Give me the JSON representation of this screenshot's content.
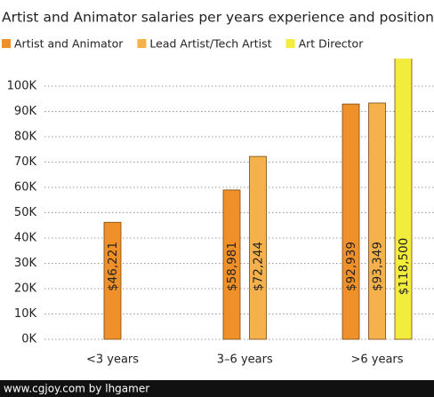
{
  "chart_data": {
    "type": "bar",
    "title": "Artist and Animator salaries per years experience and position",
    "categories": [
      "<3 years",
      "3–6 years",
      ">6 years"
    ],
    "series": [
      {
        "name": "Artist and Animator",
        "color": "#f0902a",
        "values": [
          46221,
          58981,
          92939
        ],
        "value_labels": [
          "$46,221",
          "$58,981",
          "$92,939"
        ]
      },
      {
        "name": "Lead Artist/Tech Artist",
        "color": "#f5b24c",
        "values": [
          null,
          72244,
          93349
        ],
        "value_labels": [
          null,
          "$72,244",
          "$93,349"
        ]
      },
      {
        "name": "Art Director",
        "color": "#f2ec3c",
        "values": [
          null,
          null,
          118500
        ],
        "value_labels": [
          null,
          null,
          "$118,500"
        ]
      }
    ],
    "ylim": [
      0,
      110000
    ],
    "yticks": [
      {
        "value": 0,
        "label": "0K"
      },
      {
        "value": 10000,
        "label": "10K"
      },
      {
        "value": 20000,
        "label": "20K"
      },
      {
        "value": 30000,
        "label": "30K"
      },
      {
        "value": 40000,
        "label": "40K"
      },
      {
        "value": 50000,
        "label": "50K"
      },
      {
        "value": 60000,
        "label": "60K"
      },
      {
        "value": 70000,
        "label": "70K"
      },
      {
        "value": 80000,
        "label": "80K"
      },
      {
        "value": 90000,
        "label": "90K"
      },
      {
        "value": 100000,
        "label": "100K"
      }
    ],
    "grid": true,
    "footer": "www.cgjoy.com by lhgamer"
  }
}
